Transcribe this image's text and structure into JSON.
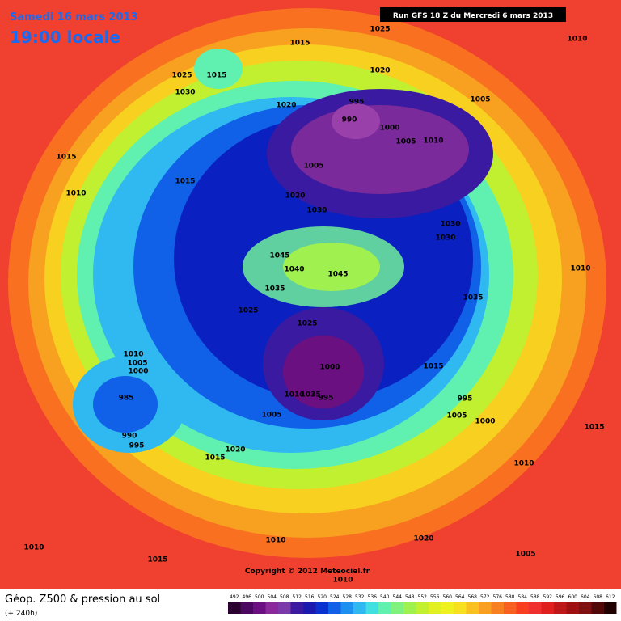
{
  "header": {
    "date": "Samedi 16 mars 2013",
    "time": "19:00 locale",
    "run": "Run GFS 18 Z du Mercredi 6 mars 2013"
  },
  "copyright": "Copyright © 2012 Meteociel.fr",
  "footer": {
    "title": "Géop. Z500 & pression au sol",
    "lead": "(+ 240h)"
  },
  "legend": {
    "labels": [
      492,
      496,
      500,
      504,
      508,
      512,
      516,
      520,
      524,
      528,
      532,
      536,
      540,
      544,
      548,
      552,
      556,
      560,
      564,
      568,
      572,
      576,
      580,
      584,
      588,
      592,
      596,
      600,
      604,
      608,
      612
    ],
    "colors": [
      "#2a0030",
      "#4a0860",
      "#6a1080",
      "#8a2a9a",
      "#7a3aa8",
      "#3a1aa0",
      "#1a1ab0",
      "#0a30d0",
      "#1060e8",
      "#1a90f0",
      "#30b8f0",
      "#40e0e0",
      "#60f0b0",
      "#80f080",
      "#a0f050",
      "#c0f030",
      "#e0f020",
      "#f0f020",
      "#f8e020",
      "#f8c020",
      "#f8a020",
      "#f88020",
      "#f86020",
      "#f84020",
      "#f03030",
      "#e02020",
      "#c01818",
      "#a01010",
      "#801010",
      "#500808",
      "#200000"
    ]
  },
  "isobar_labels": [
    1025,
    1010,
    1015,
    1025,
    1015,
    1020,
    1030,
    995,
    1005,
    1020,
    990,
    1000,
    1005,
    1010,
    1015,
    1005,
    1015,
    1010,
    1020,
    1030,
    1030,
    1030,
    1045,
    1040,
    1045,
    1010,
    1035,
    1035,
    1025,
    1025,
    1015,
    1010,
    1005,
    1000,
    1000,
    995,
    1010,
    1035,
    995,
    985,
    1005,
    1000,
    1005,
    1015,
    990,
    995,
    1020,
    1015,
    1010,
    1020,
    1010,
    1010,
    1005,
    1015,
    1010
  ]
}
